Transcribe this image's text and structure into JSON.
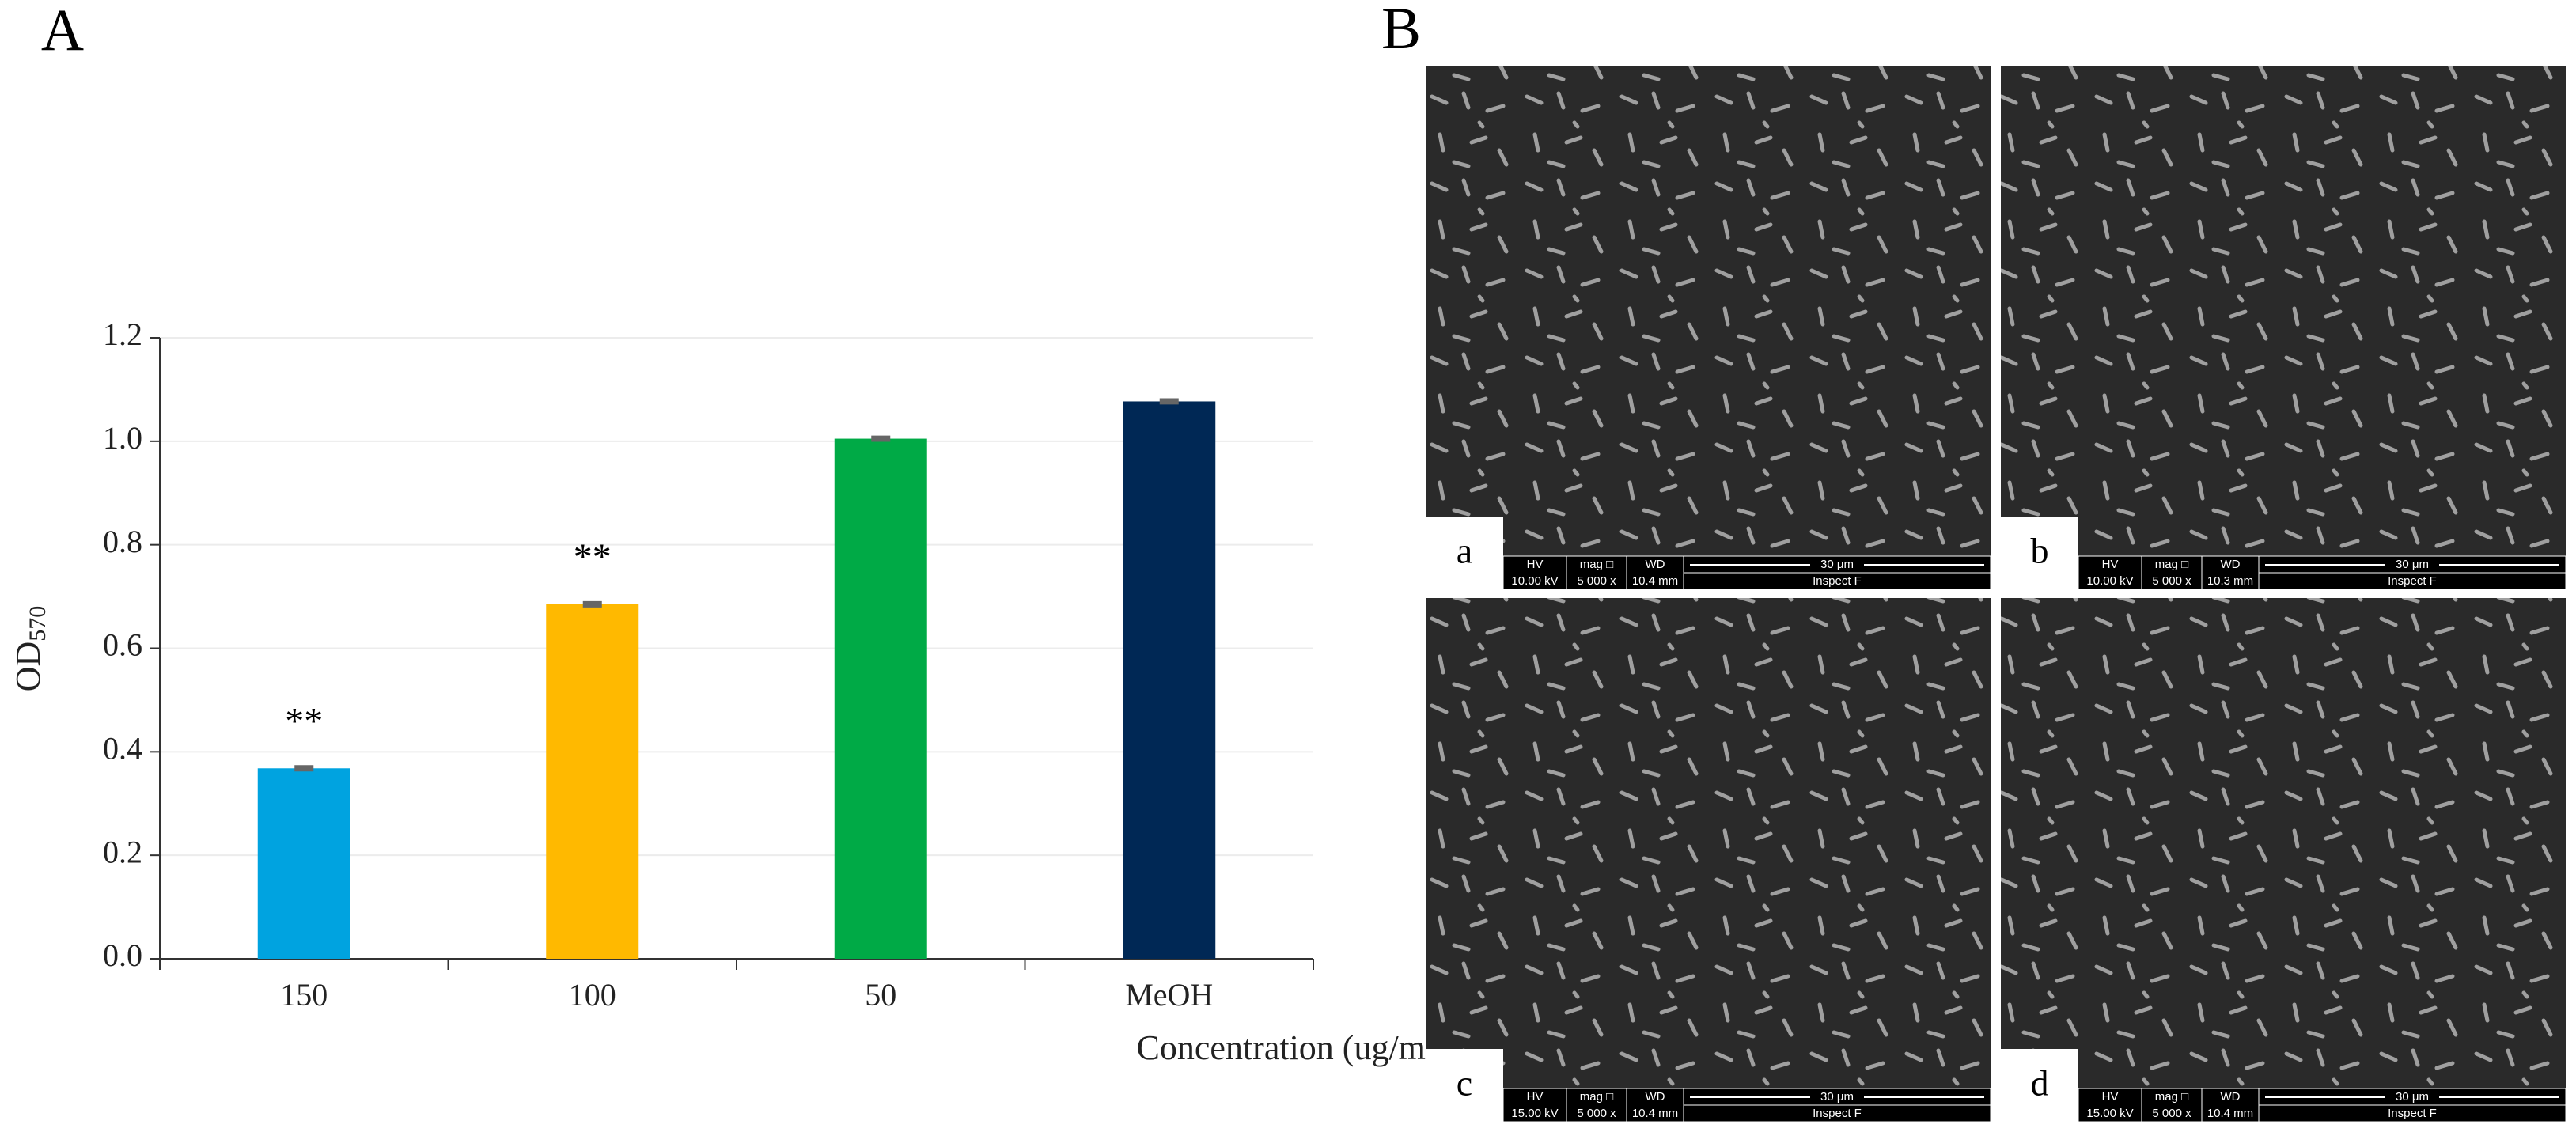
{
  "chart_data": {
    "type": "bar",
    "panel_label": "A",
    "categories": [
      "150",
      "100",
      "50",
      "MeOH"
    ],
    "values": [
      0.368,
      0.685,
      1.005,
      1.077
    ],
    "errors": [
      0.003,
      0.003,
      0.003,
      0.003
    ],
    "colors": [
      "#00a3e0",
      "#ffb900",
      "#00aa46",
      "#002855"
    ],
    "annotations": [
      "**",
      "**"
    ],
    "xlabel": "Concentration (ug/mL)",
    "ylabel": "OD",
    "ylabel_sub": "570",
    "ylim": [
      0,
      1.2
    ],
    "yticks": [
      {
        "value": 0,
        "label": "0.0"
      },
      0.2,
      0.4,
      0.6,
      0.8,
      {
        "value": 1,
        "label": "1.0"
      },
      1.2
    ],
    "grid": true
  },
  "micrographs": {
    "panel_label": "B",
    "info_headers": [
      "HV",
      "mag □",
      "WD"
    ],
    "scale_bar": "30 μm",
    "instrument": "Inspect F",
    "images": [
      {
        "label": "a",
        "hv": "10.00 kV",
        "mag": "5 000 x",
        "wd": "10.4 mm"
      },
      {
        "label": "b",
        "hv": "10.00 kV",
        "mag": "5 000 x",
        "wd": "10.3 mm"
      },
      {
        "label": "c",
        "hv": "15.00 kV",
        "mag": "5 000 x",
        "wd": "10.4 mm"
      },
      {
        "label": "d",
        "hv": "15.00 kV",
        "mag": "5 000 x",
        "wd": "10.4 mm"
      }
    ]
  }
}
